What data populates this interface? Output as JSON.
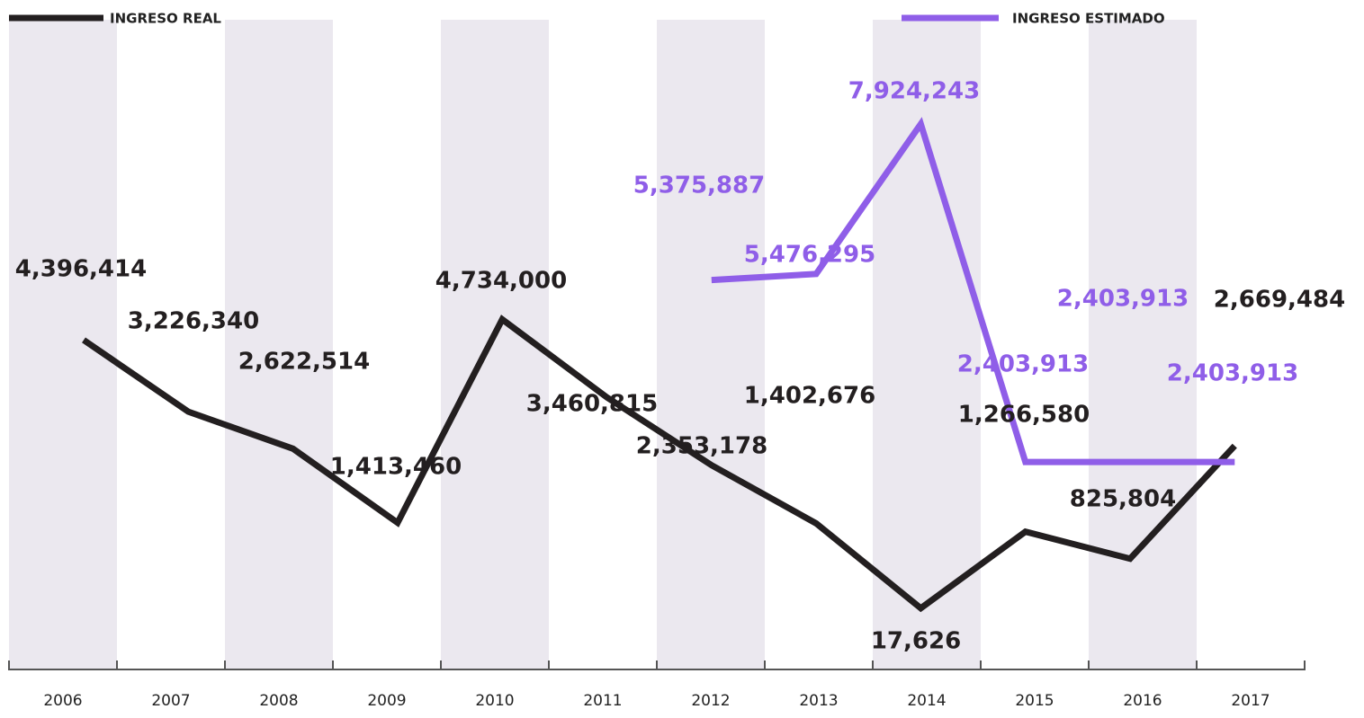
{
  "chart_data": {
    "type": "line",
    "categories": [
      "2006",
      "2007",
      "2008",
      "2009",
      "2010",
      "2011",
      "2012",
      "2013",
      "2014",
      "2015",
      "2016",
      "2017"
    ],
    "series": [
      {
        "name": "INGRESO REAL",
        "color": "#231f20",
        "values": [
          4396414,
          3226340,
          2622514,
          1413460,
          4734000,
          3460815,
          2353178,
          1402676,
          17626,
          1266580,
          825804,
          2669484
        ],
        "value_labels": [
          "4,396,414",
          "3,226,340",
          "2,622,514",
          "1,413,460",
          "4,734,000",
          "3,460,815",
          "2,353,178",
          "1,402,676",
          "17,626",
          "1,266,580",
          "825,804",
          "2,669,484"
        ]
      },
      {
        "name": "INGRESO ESTIMADO",
        "color": "#8f5ee8",
        "values": [
          null,
          null,
          null,
          null,
          null,
          null,
          5375887,
          5476295,
          7924243,
          2403913,
          2403913,
          2403913
        ],
        "value_labels": [
          null,
          null,
          null,
          null,
          null,
          null,
          "5,375,887",
          "5,476,295",
          "7,924,243",
          "2,403,913",
          "2,403,913",
          "2,403,913"
        ]
      }
    ]
  }
}
